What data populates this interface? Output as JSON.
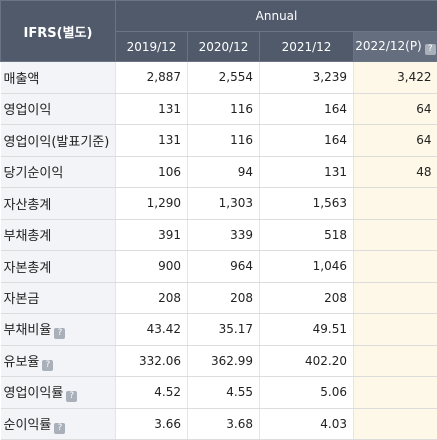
{
  "header": {
    "corner_label": "IFRS(별도)",
    "group_label": "Annual",
    "periods": [
      "2019/12",
      "2020/12",
      "2021/12",
      "2022/12(P)"
    ],
    "projection_icon": "info-icon"
  },
  "rows": [
    {
      "label": "매출액",
      "has_info": false,
      "values": [
        "2,887",
        "2,554",
        "3,239",
        "3,422"
      ]
    },
    {
      "label": "영업이익",
      "has_info": false,
      "values": [
        "131",
        "116",
        "164",
        "64"
      ]
    },
    {
      "label": "영업이익(발표기준)",
      "has_info": false,
      "values": [
        "131",
        "116",
        "164",
        "64"
      ]
    },
    {
      "label": "당기순이익",
      "has_info": false,
      "values": [
        "106",
        "94",
        "131",
        "48"
      ]
    },
    {
      "label": "자산총계",
      "has_info": false,
      "values": [
        "1,290",
        "1,303",
        "1,563",
        ""
      ]
    },
    {
      "label": "부채총계",
      "has_info": false,
      "values": [
        "391",
        "339",
        "518",
        ""
      ]
    },
    {
      "label": "자본총계",
      "has_info": false,
      "values": [
        "900",
        "964",
        "1,046",
        ""
      ]
    },
    {
      "label": "자본금",
      "has_info": false,
      "values": [
        "208",
        "208",
        "208",
        ""
      ]
    },
    {
      "label": "부채비율",
      "has_info": true,
      "values": [
        "43.42",
        "35.17",
        "49.51",
        ""
      ]
    },
    {
      "label": "유보율",
      "has_info": true,
      "values": [
        "332.06",
        "362.99",
        "402.20",
        ""
      ]
    },
    {
      "label": "영업이익률",
      "has_info": true,
      "values": [
        "4.52",
        "4.55",
        "5.06",
        ""
      ]
    },
    {
      "label": "순이익률",
      "has_info": true,
      "values": [
        "3.66",
        "3.68",
        "4.03",
        ""
      ]
    }
  ],
  "colors": {
    "header_bg": "#505a6b",
    "label_bg": "#f2f4f7",
    "projection_bg": "#fef8e9"
  }
}
